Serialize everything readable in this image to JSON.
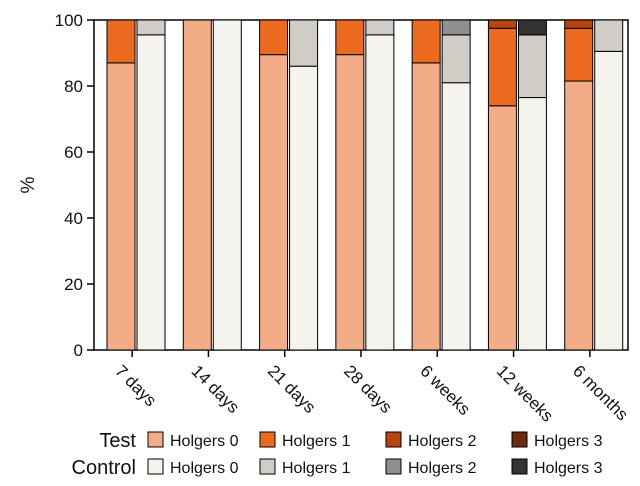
{
  "chart_data": {
    "type": "bar",
    "stacked": true,
    "grouped": true,
    "ylabel": "%",
    "ylim": [
      0,
      100
    ],
    "yticks": [
      0,
      20,
      40,
      60,
      80,
      100
    ],
    "categories": [
      "7 days",
      "14 days",
      "21 days",
      "28 days",
      "6 weeks",
      "12 weeks",
      "6 months"
    ],
    "groups": [
      {
        "name": "Test",
        "series": [
          {
            "name": "Holgers 0",
            "color": "#f2ad86",
            "values": [
              87,
              100,
              89.5,
              89.5,
              87,
              74,
              81.5
            ]
          },
          {
            "name": "Holgers 1",
            "color": "#ec6a1f",
            "values": [
              13,
              0,
              10.5,
              10.5,
              13,
              23.5,
              16
            ]
          },
          {
            "name": "Holgers 2",
            "color": "#b84410",
            "values": [
              0,
              0,
              0,
              0,
              0,
              2.5,
              2.5
            ]
          },
          {
            "name": "Holgers 3",
            "color": "#6e2a0b",
            "values": [
              0,
              0,
              0,
              0,
              0,
              0,
              0
            ]
          }
        ]
      },
      {
        "name": "Control",
        "series": [
          {
            "name": "Holgers 0",
            "color": "#f5f3ee",
            "values": [
              95.5,
              100,
              86,
              95.5,
              81,
              76.5,
              90.5
            ]
          },
          {
            "name": "Holgers 1",
            "color": "#d0ccc6",
            "values": [
              4.5,
              0,
              14,
              4.5,
              14.5,
              19,
              9.5
            ]
          },
          {
            "name": "Holgers 2",
            "color": "#8f8f8f",
            "values": [
              0,
              0,
              0,
              0,
              4.5,
              0,
              0
            ]
          },
          {
            "name": "Holgers 3",
            "color": "#333333",
            "values": [
              0,
              0,
              0,
              0,
              0,
              4.5,
              0
            ]
          }
        ]
      }
    ],
    "legend": [
      {
        "group": "Test",
        "entries": [
          "Holgers 0",
          "Holgers 1",
          "Holgers 2",
          "Holgers 3"
        ]
      },
      {
        "group": "Control",
        "entries": [
          "Holgers 0",
          "Holgers 1",
          "Holgers 2",
          "Holgers 3"
        ]
      }
    ]
  }
}
